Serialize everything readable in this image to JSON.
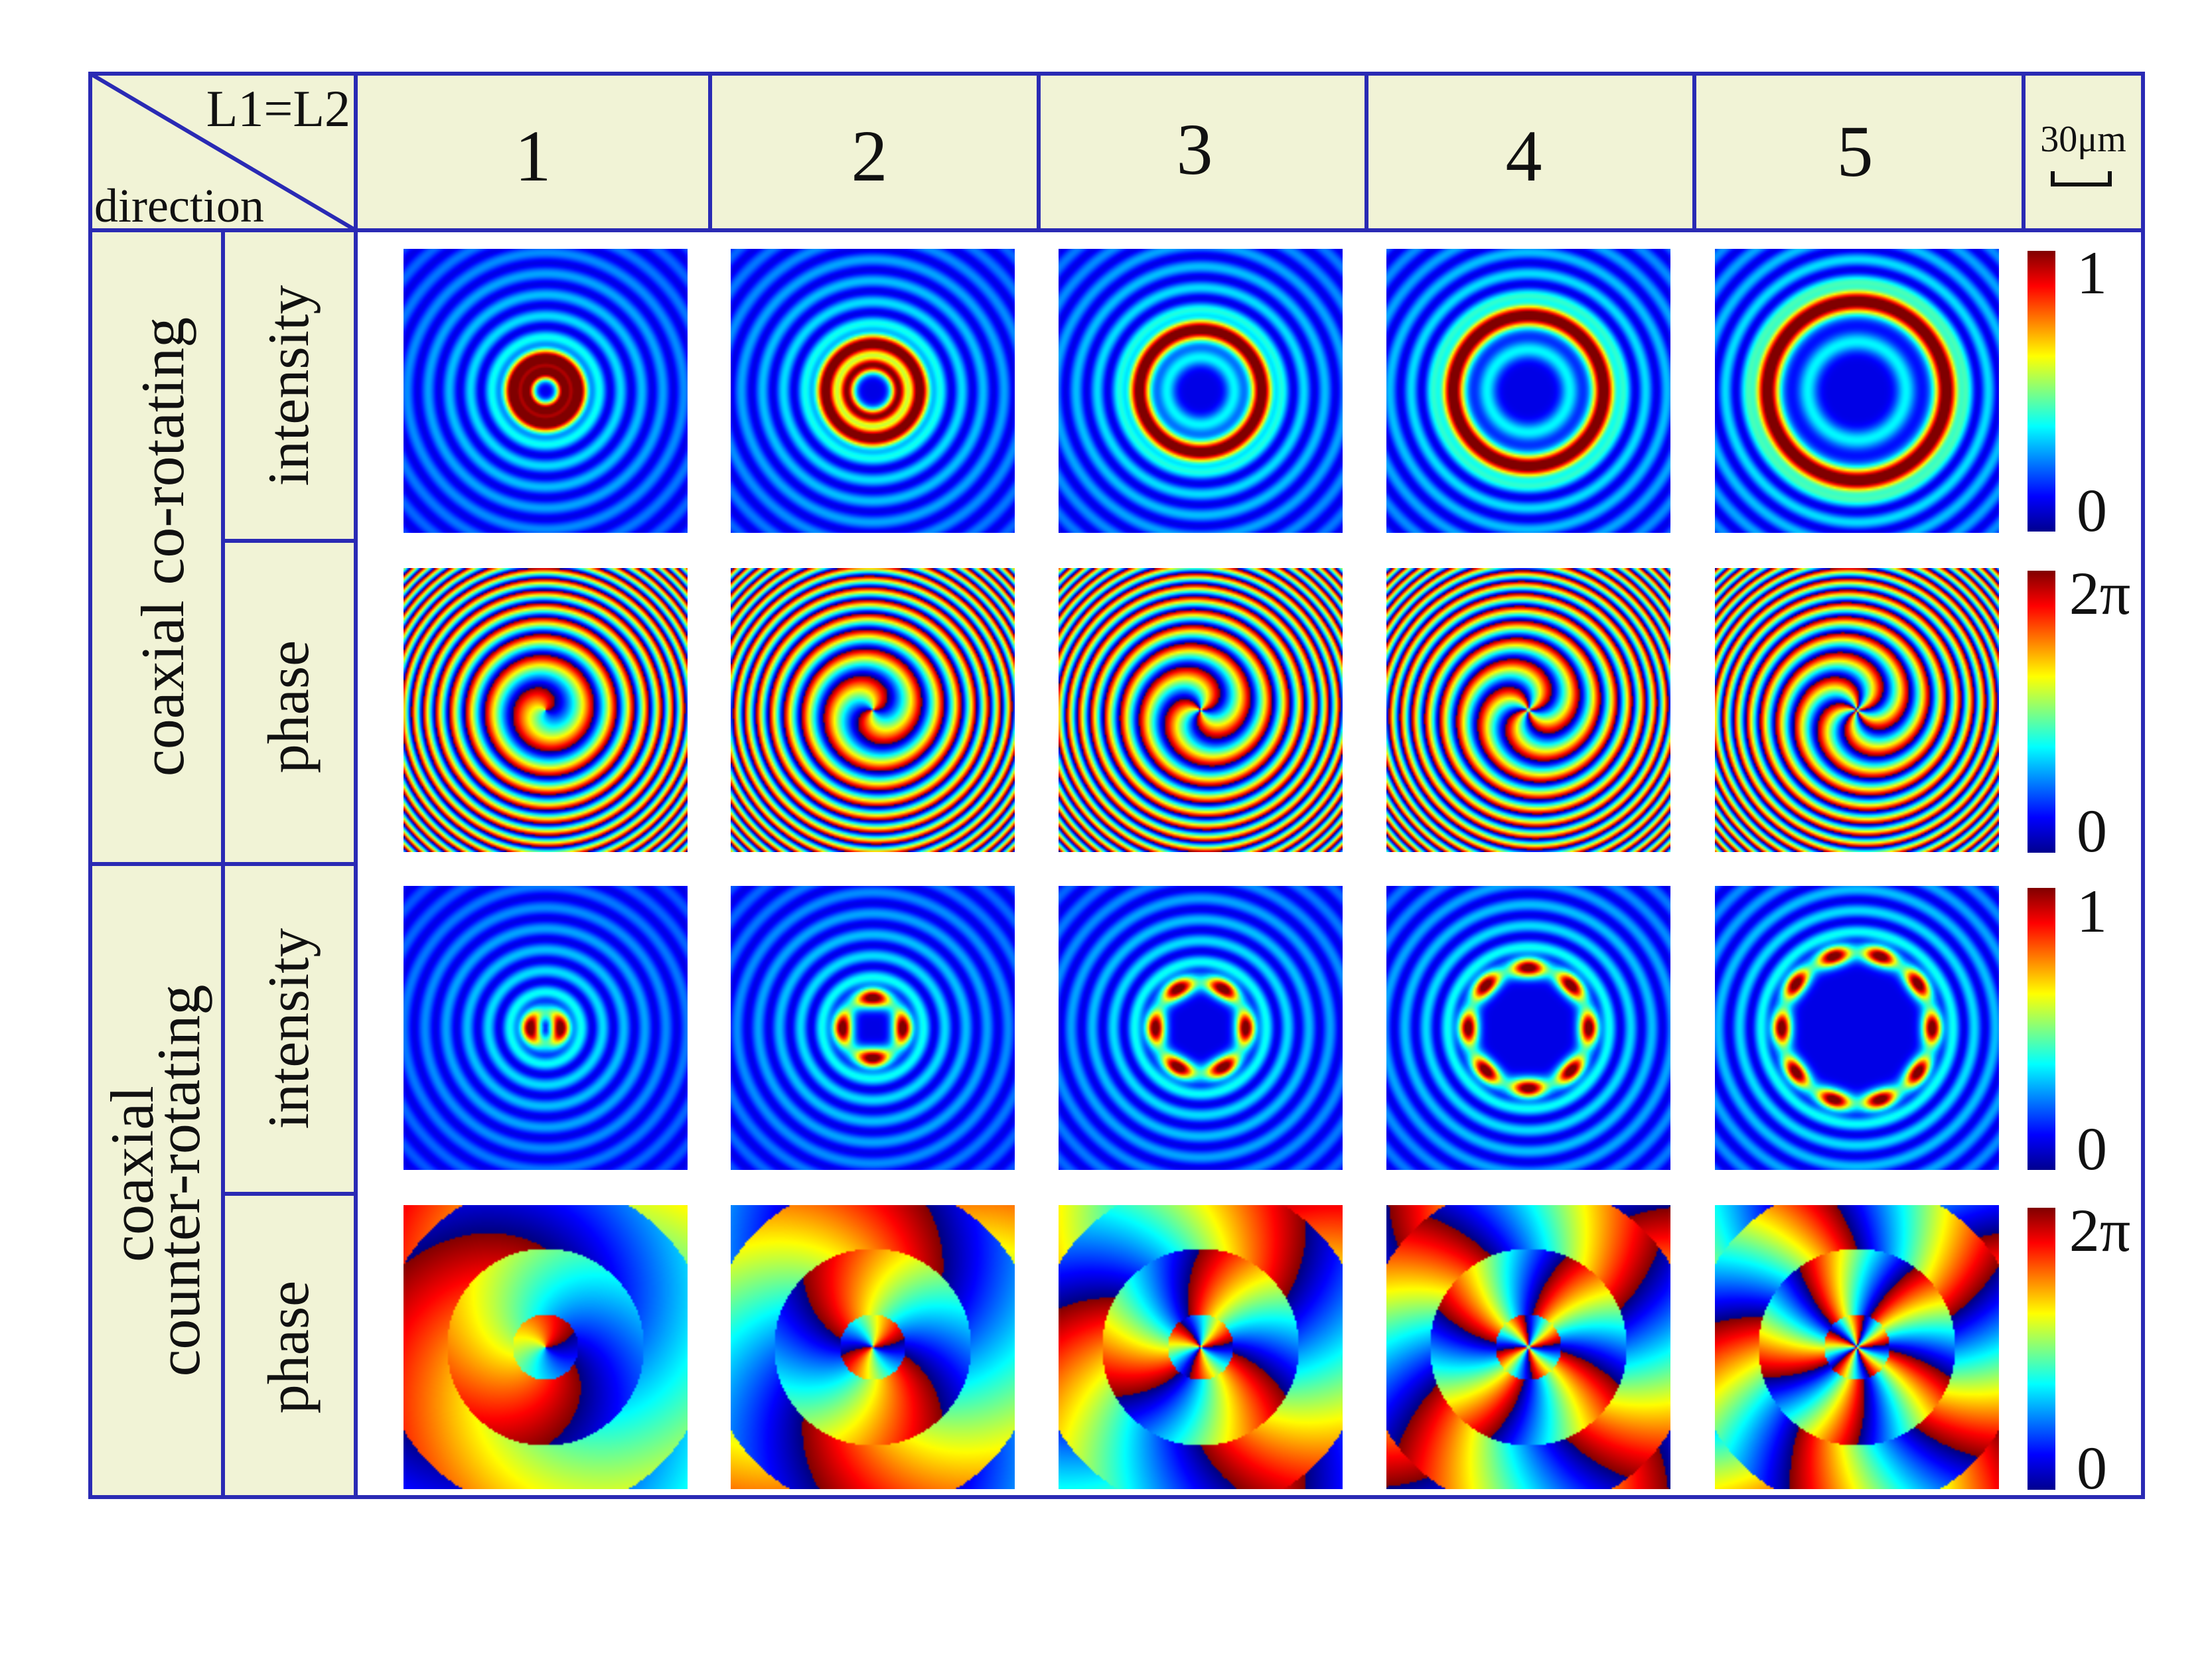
{
  "header": {
    "corner_top": "L1=L2",
    "corner_bottom": "direction",
    "columns": [
      "1",
      "2",
      "3",
      "4",
      "5"
    ],
    "scalebar_label": "30μm"
  },
  "row_groups": [
    {
      "label_lines": [
        "coaxial co-rotating"
      ],
      "kind": "co",
      "rows": [
        "intensity",
        "phase"
      ]
    },
    {
      "label_lines": [
        "coaxial",
        "counter-rotating"
      ],
      "kind": "counter",
      "rows": [
        "intensity",
        "phase"
      ]
    }
  ],
  "colorbars": [
    {
      "max_label": "1",
      "min_label": "0"
    },
    {
      "max_label": "2π",
      "min_label": "0"
    },
    {
      "max_label": "1",
      "min_label": "0"
    },
    {
      "max_label": "2π",
      "min_label": "0"
    }
  ],
  "colormap": "jet",
  "colors": {
    "grid_line": "#2a2ab4",
    "header_fill": "#f1f3d6",
    "panel_bg": "#00008f"
  }
}
